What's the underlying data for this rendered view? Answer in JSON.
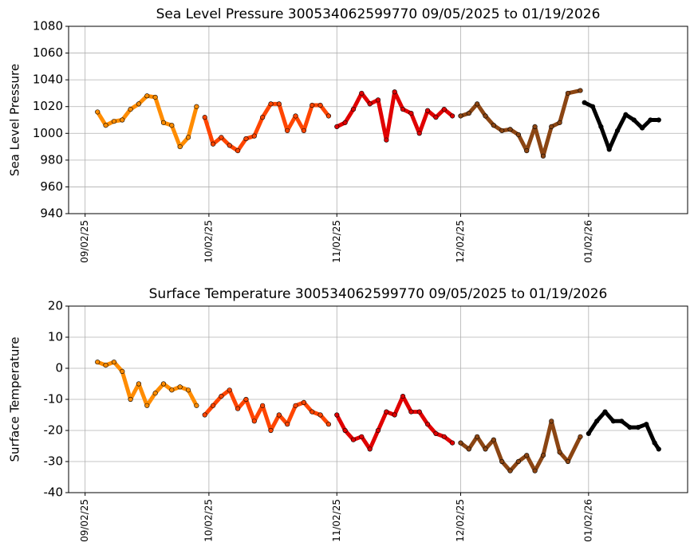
{
  "chart_data": [
    {
      "type": "line",
      "title": "Sea Level Pressure 300534062599770  09/05/2025 to 01/19/2026",
      "y_label": "Sea Level Pressure",
      "xlim": [
        "08/29/25",
        "01/26/26"
      ],
      "xticks": [
        "09/02/25",
        "10/02/25",
        "11/02/25",
        "12/02/25",
        "01/02/26"
      ],
      "ylim": [
        940,
        1080
      ],
      "yticks": [
        940,
        960,
        980,
        1000,
        1020,
        1040,
        1060,
        1080
      ],
      "grid": true,
      "series": [
        {
          "color": "#ff8c00",
          "x": [
            "09/05/25",
            "09/07/25",
            "09/09/25",
            "09/11/25",
            "09/13/25",
            "09/15/25",
            "09/17/25",
            "09/19/25",
            "09/21/25",
            "09/23/25",
            "09/25/25",
            "09/27/25",
            "09/29/25"
          ],
          "values": [
            1016,
            1006,
            1009,
            1010,
            1018,
            1022,
            1028,
            1027,
            1008,
            1006,
            990,
            997,
            1020
          ]
        },
        {
          "color": "#ff4500",
          "x": [
            "10/01/25",
            "10/03/25",
            "10/05/25",
            "10/07/25",
            "10/09/25",
            "10/11/25",
            "10/13/25",
            "10/15/25",
            "10/17/25",
            "10/19/25",
            "10/21/25",
            "10/23/25",
            "10/25/25",
            "10/27/25",
            "10/29/25",
            "10/31/25"
          ],
          "values": [
            1012,
            992,
            997,
            991,
            987,
            996,
            998,
            1012,
            1022,
            1022,
            1002,
            1013,
            1002,
            1021,
            1021,
            1013
          ]
        },
        {
          "color": "#e00000",
          "x": [
            "11/02/25",
            "11/04/25",
            "11/06/25",
            "11/08/25",
            "11/10/25",
            "11/12/25",
            "11/14/25",
            "11/16/25",
            "11/18/25",
            "11/20/25",
            "11/22/25",
            "11/24/25",
            "11/26/25",
            "11/28/25",
            "11/30/25"
          ],
          "values": [
            1005,
            1008,
            1018,
            1030,
            1022,
            1025,
            995,
            1031,
            1018,
            1015,
            1000,
            1017,
            1012,
            1018,
            1013
          ]
        },
        {
          "color": "#8b4513",
          "x": [
            "12/02/25",
            "12/04/25",
            "12/06/25",
            "12/08/25",
            "12/10/25",
            "12/12/25",
            "12/14/25",
            "12/16/25",
            "12/18/25",
            "12/20/25",
            "12/22/25",
            "12/24/25",
            "12/26/25",
            "12/28/25",
            "12/31/25"
          ],
          "values": [
            1013,
            1015,
            1022,
            1013,
            1006,
            1002,
            1003,
            999,
            987,
            1005,
            983,
            1005,
            1008,
            1030,
            1032
          ]
        },
        {
          "color": "#000000",
          "x": [
            "01/01/26",
            "01/03/26",
            "01/05/26",
            "01/07/26",
            "01/09/26",
            "01/11/26",
            "01/13/26",
            "01/15/26",
            "01/17/26",
            "01/19/26"
          ],
          "values": [
            1023,
            1020,
            1005,
            988,
            1002,
            1014,
            1010,
            1004,
            1010,
            1010
          ]
        }
      ]
    },
    {
      "type": "line",
      "title": "Surface Temperature 300534062599770  09/05/2025 to 01/19/2026",
      "y_label": "Surface Temperature",
      "xlim": [
        "08/29/25",
        "01/26/26"
      ],
      "xticks": [
        "09/02/25",
        "10/02/25",
        "11/02/25",
        "12/02/25",
        "01/02/26"
      ],
      "ylim": [
        -40,
        20
      ],
      "yticks": [
        -40,
        -30,
        -20,
        -10,
        0,
        10,
        20
      ],
      "grid": true,
      "series": [
        {
          "color": "#ff8c00",
          "x": [
            "09/05/25",
            "09/07/25",
            "09/09/25",
            "09/11/25",
            "09/13/25",
            "09/15/25",
            "09/17/25",
            "09/19/25",
            "09/21/25",
            "09/23/25",
            "09/25/25",
            "09/27/25",
            "09/29/25"
          ],
          "values": [
            2,
            1,
            2,
            -1,
            -10,
            -5,
            -12,
            -8,
            -5,
            -7,
            -6,
            -7,
            -12
          ]
        },
        {
          "color": "#ff4500",
          "x": [
            "10/01/25",
            "10/03/25",
            "10/05/25",
            "10/07/25",
            "10/09/25",
            "10/11/25",
            "10/13/25",
            "10/15/25",
            "10/17/25",
            "10/19/25",
            "10/21/25",
            "10/23/25",
            "10/25/25",
            "10/27/25",
            "10/29/25",
            "10/31/25"
          ],
          "values": [
            -15,
            -12,
            -9,
            -7,
            -13,
            -10,
            -17,
            -12,
            -20,
            -15,
            -18,
            -12,
            -11,
            -14,
            -15,
            -18
          ]
        },
        {
          "color": "#e00000",
          "x": [
            "11/02/25",
            "11/04/25",
            "11/06/25",
            "11/08/25",
            "11/10/25",
            "11/12/25",
            "11/14/25",
            "11/16/25",
            "11/18/25",
            "11/20/25",
            "11/22/25",
            "11/24/25",
            "11/26/25",
            "11/28/25",
            "11/30/25"
          ],
          "values": [
            -15,
            -20,
            -23,
            -22,
            -26,
            -20,
            -14,
            -15,
            -9,
            -14,
            -14,
            -18,
            -21,
            -22,
            -24
          ]
        },
        {
          "color": "#8b4513",
          "x": [
            "12/02/25",
            "12/04/25",
            "12/06/25",
            "12/08/25",
            "12/10/25",
            "12/12/25",
            "12/14/25",
            "12/16/25",
            "12/18/25",
            "12/20/25",
            "12/22/25",
            "12/24/25",
            "12/26/25",
            "12/28/25",
            "12/31/25"
          ],
          "values": [
            -24,
            -26,
            -22,
            -26,
            -23,
            -30,
            -33,
            -30,
            -28,
            -33,
            -28,
            -17,
            -27,
            -30,
            -22
          ]
        },
        {
          "color": "#000000",
          "x": [
            "01/02/26",
            "01/04/26",
            "01/06/26",
            "01/08/26",
            "01/10/26",
            "01/12/26",
            "01/14/26",
            "01/16/26",
            "01/18/26",
            "01/19/26"
          ],
          "values": [
            -21,
            -17,
            -14,
            -17,
            -17,
            -19,
            -19,
            -18,
            -24,
            -26
          ]
        }
      ]
    }
  ]
}
